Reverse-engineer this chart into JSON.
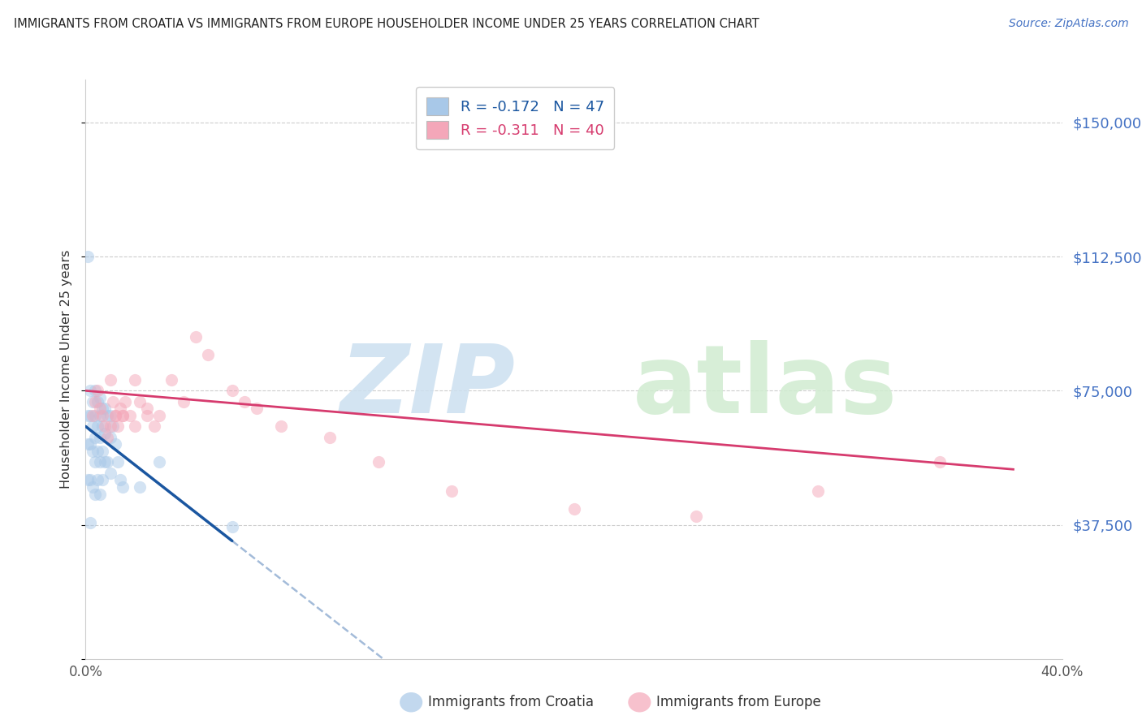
{
  "title": "IMMIGRANTS FROM CROATIA VS IMMIGRANTS FROM EUROPE HOUSEHOLDER INCOME UNDER 25 YEARS CORRELATION CHART",
  "source": "Source: ZipAtlas.com",
  "ylabel": "Householder Income Under 25 years",
  "xlim": [
    0.0,
    0.4
  ],
  "ylim": [
    0,
    162000
  ],
  "ytick_vals": [
    0,
    37500,
    75000,
    112500,
    150000
  ],
  "ytick_labels": [
    "",
    "$37,500",
    "$75,000",
    "$112,500",
    "$150,000"
  ],
  "xtick_vals": [
    0.0,
    0.1,
    0.2,
    0.3,
    0.4
  ],
  "xtick_labels_show": [
    "0.0%",
    "",
    "",
    "",
    "40.0%"
  ],
  "legend_label_croatia": "R = -0.172   N = 47",
  "legend_label_europe": "R = -0.311   N = 40",
  "bottom_legend_croatia": "Immigrants from Croatia",
  "bottom_legend_europe": "Immigrants from Europe",
  "blue_scatter_color": "#a8c8e8",
  "pink_scatter_color": "#f4a7b9",
  "blue_line_color": "#1a56a0",
  "pink_line_color": "#d63b6e",
  "grid_color": "#cccccc",
  "spine_color": "#cccccc",
  "ytick_color": "#4472c4",
  "title_color": "#222222",
  "source_color": "#4472c4",
  "watermark_zip_color": "#cce0f0",
  "watermark_atlas_color": "#d0ecd0",
  "croatia_line_x0": 0.0,
  "croatia_line_y0": 65000,
  "croatia_line_x1": 0.06,
  "croatia_line_y1": 33000,
  "croatia_line_solid_xmax": 0.06,
  "croatia_line_dash_xmax": 0.22,
  "europe_line_x0": 0.0,
  "europe_line_y0": 75000,
  "europe_line_x1": 0.38,
  "europe_line_y1": 53000,
  "croatia_points_x": [
    0.001,
    0.001,
    0.001,
    0.002,
    0.002,
    0.002,
    0.002,
    0.003,
    0.003,
    0.003,
    0.003,
    0.004,
    0.004,
    0.004,
    0.004,
    0.004,
    0.005,
    0.005,
    0.005,
    0.005,
    0.006,
    0.006,
    0.006,
    0.006,
    0.006,
    0.007,
    0.007,
    0.007,
    0.007,
    0.008,
    0.008,
    0.008,
    0.009,
    0.009,
    0.01,
    0.01,
    0.01,
    0.011,
    0.012,
    0.013,
    0.014,
    0.015,
    0.022,
    0.03,
    0.06,
    0.001,
    0.002
  ],
  "croatia_points_y": [
    68000,
    60000,
    50000,
    75000,
    68000,
    60000,
    50000,
    72000,
    65000,
    58000,
    48000,
    75000,
    68000,
    62000,
    55000,
    46000,
    72000,
    65000,
    58000,
    50000,
    73000,
    68000,
    62000,
    55000,
    46000,
    70000,
    65000,
    58000,
    50000,
    70000,
    63000,
    55000,
    68000,
    55000,
    68000,
    62000,
    52000,
    65000,
    60000,
    55000,
    50000,
    48000,
    48000,
    55000,
    37000,
    112500,
    38000
  ],
  "europe_points_x": [
    0.003,
    0.004,
    0.005,
    0.006,
    0.007,
    0.008,
    0.009,
    0.01,
    0.011,
    0.012,
    0.013,
    0.014,
    0.015,
    0.016,
    0.018,
    0.02,
    0.022,
    0.025,
    0.028,
    0.03,
    0.035,
    0.04,
    0.045,
    0.05,
    0.06,
    0.065,
    0.07,
    0.08,
    0.1,
    0.12,
    0.15,
    0.2,
    0.25,
    0.3,
    0.35,
    0.01,
    0.012,
    0.015,
    0.02,
    0.025
  ],
  "europe_points_y": [
    68000,
    72000,
    75000,
    70000,
    68000,
    65000,
    62000,
    78000,
    72000,
    68000,
    65000,
    70000,
    68000,
    72000,
    68000,
    78000,
    72000,
    68000,
    65000,
    68000,
    78000,
    72000,
    90000,
    85000,
    75000,
    72000,
    70000,
    65000,
    62000,
    55000,
    47000,
    42000,
    40000,
    47000,
    55000,
    65000,
    68000,
    68000,
    65000,
    70000
  ]
}
